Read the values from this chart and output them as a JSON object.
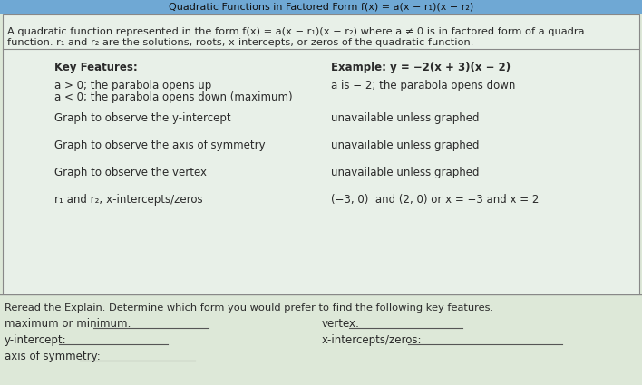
{
  "bg_color": "#dde8d8",
  "box_bg": "#e8f0e8",
  "border_color": "#888888",
  "header_bg": "#6fa8d4",
  "header_text": "Quadratic Functions in Factored Form f(x) = a(x − r₁)(x − r₂)",
  "intro_line1": "A quadratic function represented in the form f(x) = a(x − r₁)(x − r₂) where a ≠ 0 is in factored form of a quadra",
  "intro_line2": "function. r₁ and r₂ are the solutions, roots, x-intercepts, or zeros of the quadratic function.",
  "key_features_label": "Key Features:",
  "example_label": "Example: y = −2(x + 3)(x − 2)",
  "row1a_left": "a > 0; the parabola opens up",
  "row1b_left": "a < 0; the parabola opens down (maximum)",
  "row1_right": "a is − 2; the parabola opens down",
  "row2_left": "Graph to observe the y-intercept",
  "row2_right": "unavailable unless graphed",
  "row3_left": "Graph to observe the axis of symmetry",
  "row3_right": "unavailable unless graphed",
  "row4_left": "Graph to observe the vertex",
  "row4_right": "unavailable unless graphed",
  "row5_left": "r₁ and r₂; x-intercepts/zeros",
  "row5_right": "(−3, 0)  and (2, 0) or x = −3 and x = 2",
  "bottom_intro": "Reread the Explain. Determine which form you would prefer to find the following key features.",
  "label_max": "maximum or minimum:",
  "label_vertex": "vertex:",
  "label_yint": "y-intercept:",
  "label_xint": "x-intercepts/zeros:",
  "label_aos": "axis of symmetry:",
  "text_color": "#2a2a2a",
  "fs_intro": 8.2,
  "fs_label": 8.5,
  "fs_bold": 8.5
}
